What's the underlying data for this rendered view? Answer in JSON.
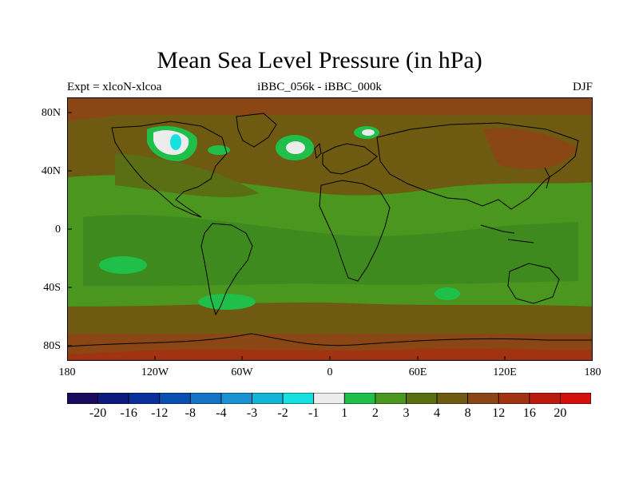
{
  "map": {
    "title": "Mean Sea Level Pressure (in hPa)",
    "left_label": "Expt = xlcoN-xlcoa",
    "center_label": "iBBC_056k - iBBC_000k",
    "right_label": "DJF",
    "y_ticks": [
      "80N",
      "40N",
      "0",
      "40S",
      "80S"
    ],
    "x_ticks": [
      "180",
      "120W",
      "60W",
      "0",
      "60E",
      "120E",
      "180"
    ],
    "extent": {
      "lon_min": -180,
      "lon_max": 180,
      "lat_min": -90,
      "lat_max": 90
    },
    "colorbar": {
      "boundaries": [
        "-20",
        "-16",
        "-12",
        "-8",
        "-4",
        "-3",
        "-2",
        "-1",
        "1",
        "2",
        "3",
        "4",
        "8",
        "12",
        "16",
        "20"
      ],
      "colors": [
        "#1a0a5e",
        "#0c1a80",
        "#0a2f9a",
        "#0a4fb0",
        "#1572c6",
        "#1a92d2",
        "#14b3d8",
        "#16e0e0",
        "#ececec",
        "#1fbf4a",
        "#4a961f",
        "#5a6f14",
        "#6e5a10",
        "#8a4614",
        "#a23312",
        "#bb1a0f",
        "#d4100c"
      ]
    },
    "colors": {
      "high_lat": "#8a4614",
      "mid_lat": "#6e5a10",
      "tropics": "#4a961f",
      "tropics_strong": "#3e8a1e",
      "positive_anomaly": "#1fbf4a",
      "near_zero": "#ececec",
      "negative_anomaly": "#16e0e0",
      "extreme": "#bb1a0f"
    }
  }
}
